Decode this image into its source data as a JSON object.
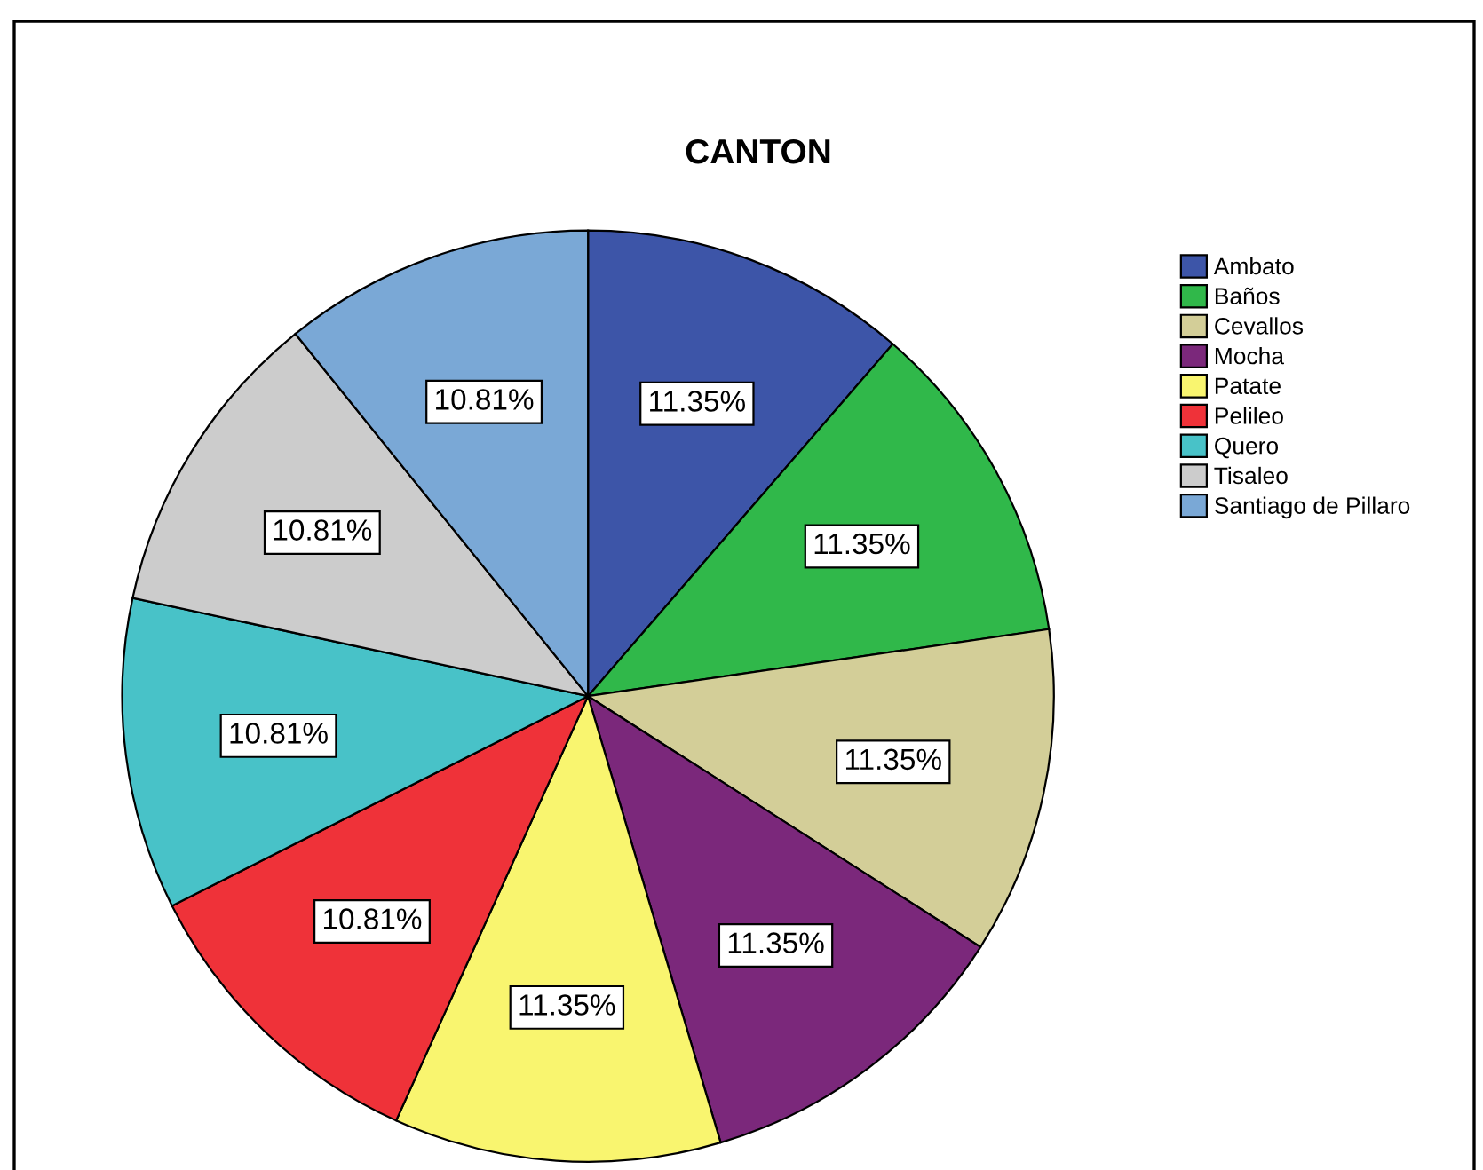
{
  "chart_data": {
    "type": "pie",
    "title": "CANTON",
    "categories": [
      "Ambato",
      "Baños",
      "Cevallos",
      "Mocha",
      "Patate",
      "Pelileo",
      "Quero",
      "Tisaleo",
      "Santiago de Pillaro"
    ],
    "values": [
      11.35,
      11.35,
      11.35,
      11.35,
      11.35,
      10.81,
      10.81,
      10.81,
      10.81
    ],
    "value_labels": [
      "11.35%",
      "11.35%",
      "11.35%",
      "11.35%",
      "11.35%",
      "10.81%",
      "10.81%",
      "10.81%",
      "10.81%"
    ],
    "colors": [
      "#3d55a8",
      "#30b84a",
      "#d3ce98",
      "#7b287b",
      "#f9f56f",
      "#ef3239",
      "#48c2c8",
      "#cccccc",
      "#7aa8d6"
    ],
    "legend": "top right"
  }
}
